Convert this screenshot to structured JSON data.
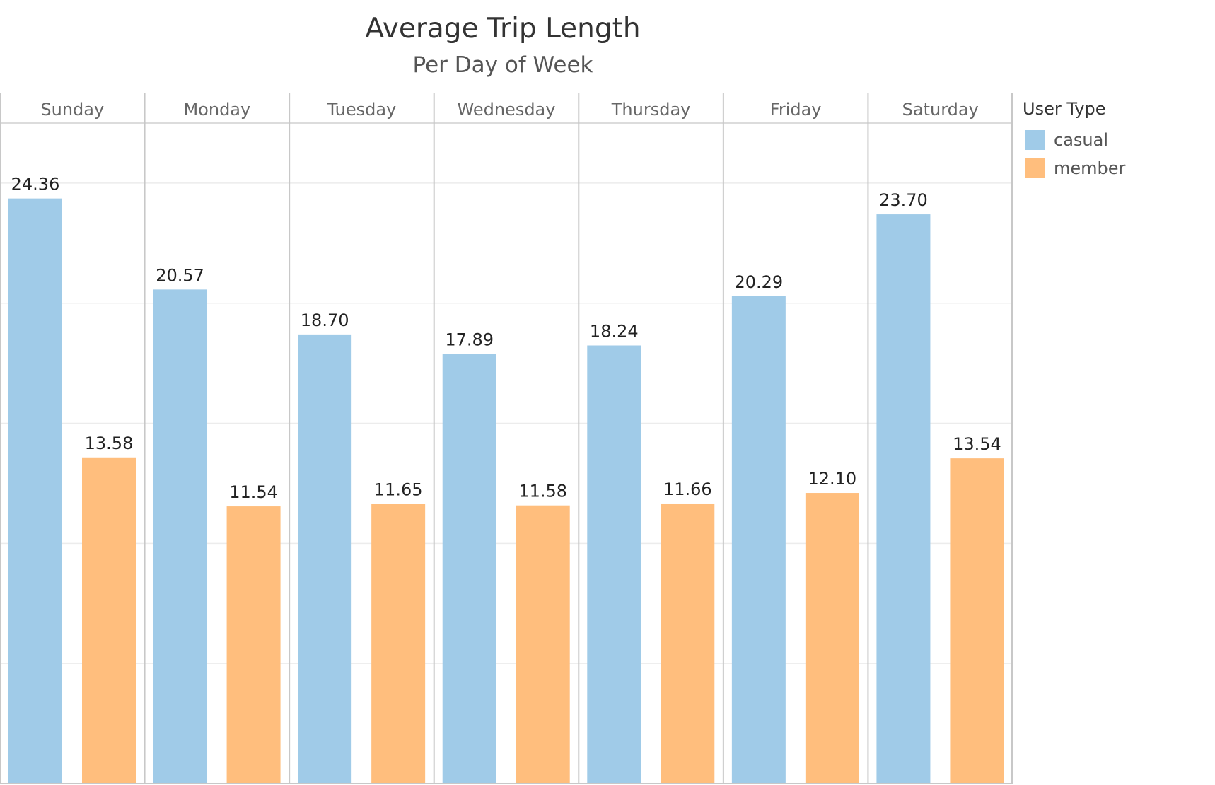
{
  "chart_data": {
    "type": "bar",
    "title": "Average Trip Length",
    "subtitle": "Per Day of Week",
    "categories": [
      "Sunday",
      "Monday",
      "Tuesday",
      "Wednesday",
      "Thursday",
      "Friday",
      "Saturday"
    ],
    "series": [
      {
        "name": "casual",
        "color": "#a0cbe8",
        "values": [
          24.36,
          20.57,
          18.7,
          17.89,
          18.24,
          20.29,
          23.7
        ],
        "labels": [
          "24.36",
          "20.57",
          "18.70",
          "17.89",
          "18.24",
          "20.29",
          "23.70"
        ]
      },
      {
        "name": "member",
        "color": "#ffbe7d",
        "values": [
          13.58,
          11.54,
          11.65,
          11.58,
          11.66,
          12.1,
          13.54
        ],
        "labels": [
          "13.58",
          "11.54",
          "11.65",
          "11.58",
          "11.66",
          "12.10",
          "13.54"
        ]
      }
    ],
    "ylim": [
      0,
      27.5
    ],
    "gridlines": [
      5,
      10,
      15,
      20,
      25
    ],
    "grid": true,
    "legend": {
      "title": "User Type",
      "placement": "right"
    }
  }
}
